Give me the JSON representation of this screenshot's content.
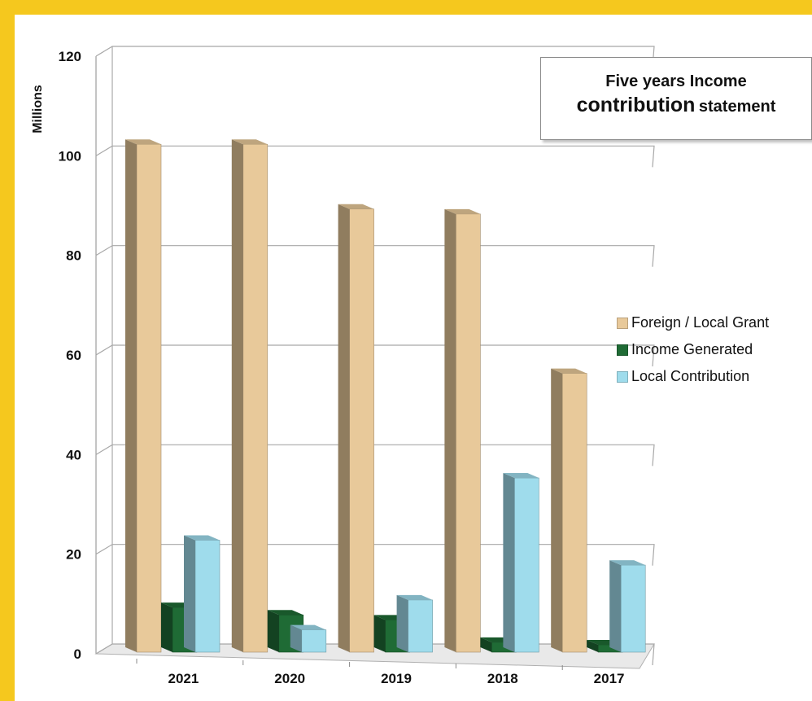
{
  "chart_data": {
    "type": "bar",
    "title_line1": "Five years Income",
    "title_big": "contribution",
    "title_small": "statement",
    "ylabel": "Millions",
    "xlabel": "",
    "categories": [
      "2021",
      "2020",
      "2019",
      "2018",
      "2017"
    ],
    "ylim": [
      0,
      120
    ],
    "yticks": [
      0,
      20,
      40,
      60,
      80,
      100,
      120
    ],
    "grid": true,
    "legend_position": "right",
    "series": [
      {
        "name": "Foreign / Local Grant",
        "values": [
          101,
          101,
          88,
          87,
          55
        ],
        "color": "#e8c99a"
      },
      {
        "name": "Income Generated",
        "values": [
          8,
          6.5,
          5.5,
          1,
          0.5
        ],
        "color": "#1f6b35"
      },
      {
        "name": "Local Contribution",
        "values": [
          21.5,
          3.5,
          9.5,
          34,
          16.5
        ],
        "color": "#9fdcec"
      }
    ]
  }
}
